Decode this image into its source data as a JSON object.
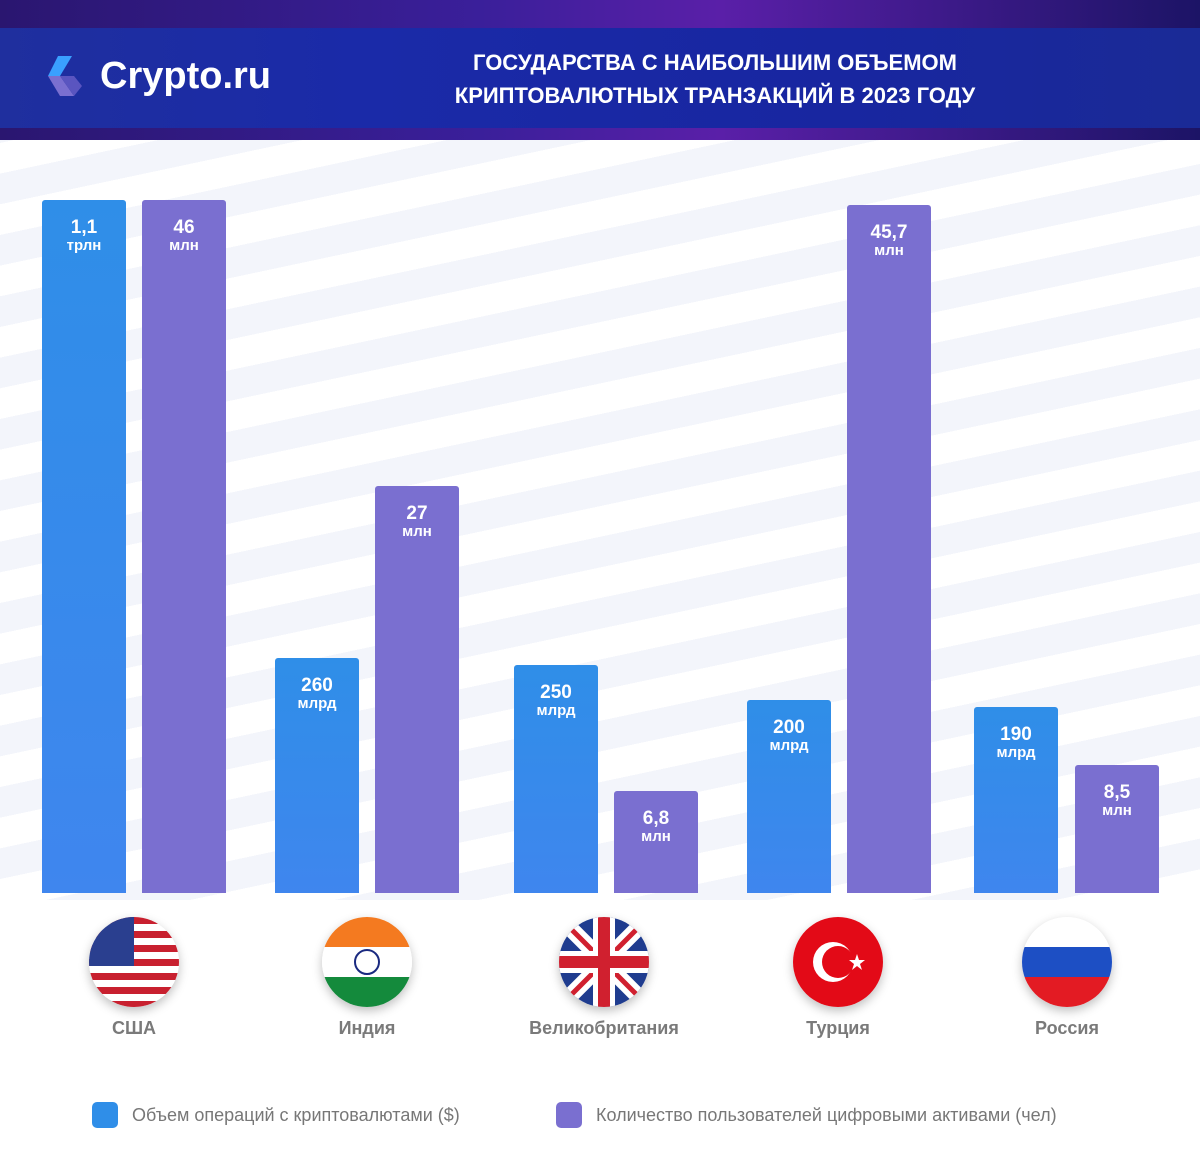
{
  "header": {
    "logo": "Crypto.ru",
    "title_line1": "ГОСУДАРСТВА С НАИБОЛЬШИМ ОБЪЕМОМ",
    "title_line2": "КРИПТОВАЛЮТНЫХ ТРАНЗАКЦИЙ В 2023 ГОДУ"
  },
  "chart_data": {
    "type": "bar",
    "title": "ГОСУДАРСТВА С НАИБОЛЬШИМ ОБЪЕМОМ КРИПТОВАЛЮТНЫХ ТРАНЗАКЦИЙ В 2023 ГОДУ",
    "categories": [
      "США",
      "Индия",
      "Великобритания",
      "Турция",
      "Россия"
    ],
    "series": [
      {
        "name": "Объем операций с криптовалютами ($)",
        "color": "#2f8ee8",
        "values": [
          1100000000000,
          260000000000,
          250000000000,
          200000000000,
          190000000000
        ],
        "labels": [
          [
            "1,1",
            "трлн"
          ],
          [
            "260",
            "млрд"
          ],
          [
            "250",
            "млрд"
          ],
          [
            "200",
            "млрд"
          ],
          [
            "190",
            "млрд"
          ]
        ]
      },
      {
        "name": "Количество пользователей цифровыми активами (чел)",
        "color": "#7a6fd0",
        "values": [
          46000000,
          27000000,
          6800000,
          45700000,
          8500000
        ],
        "labels": [
          [
            "46",
            "млн"
          ],
          [
            "27",
            "млн"
          ],
          [
            "6,8",
            "млн"
          ],
          [
            "45,7",
            "млн"
          ],
          [
            "8,5",
            "млн"
          ]
        ]
      }
    ],
    "flags": [
      "us-flag",
      "india-flag",
      "uk-flag",
      "turkey-flag",
      "russia-flag"
    ],
    "legend": "bottom",
    "grid": false
  }
}
